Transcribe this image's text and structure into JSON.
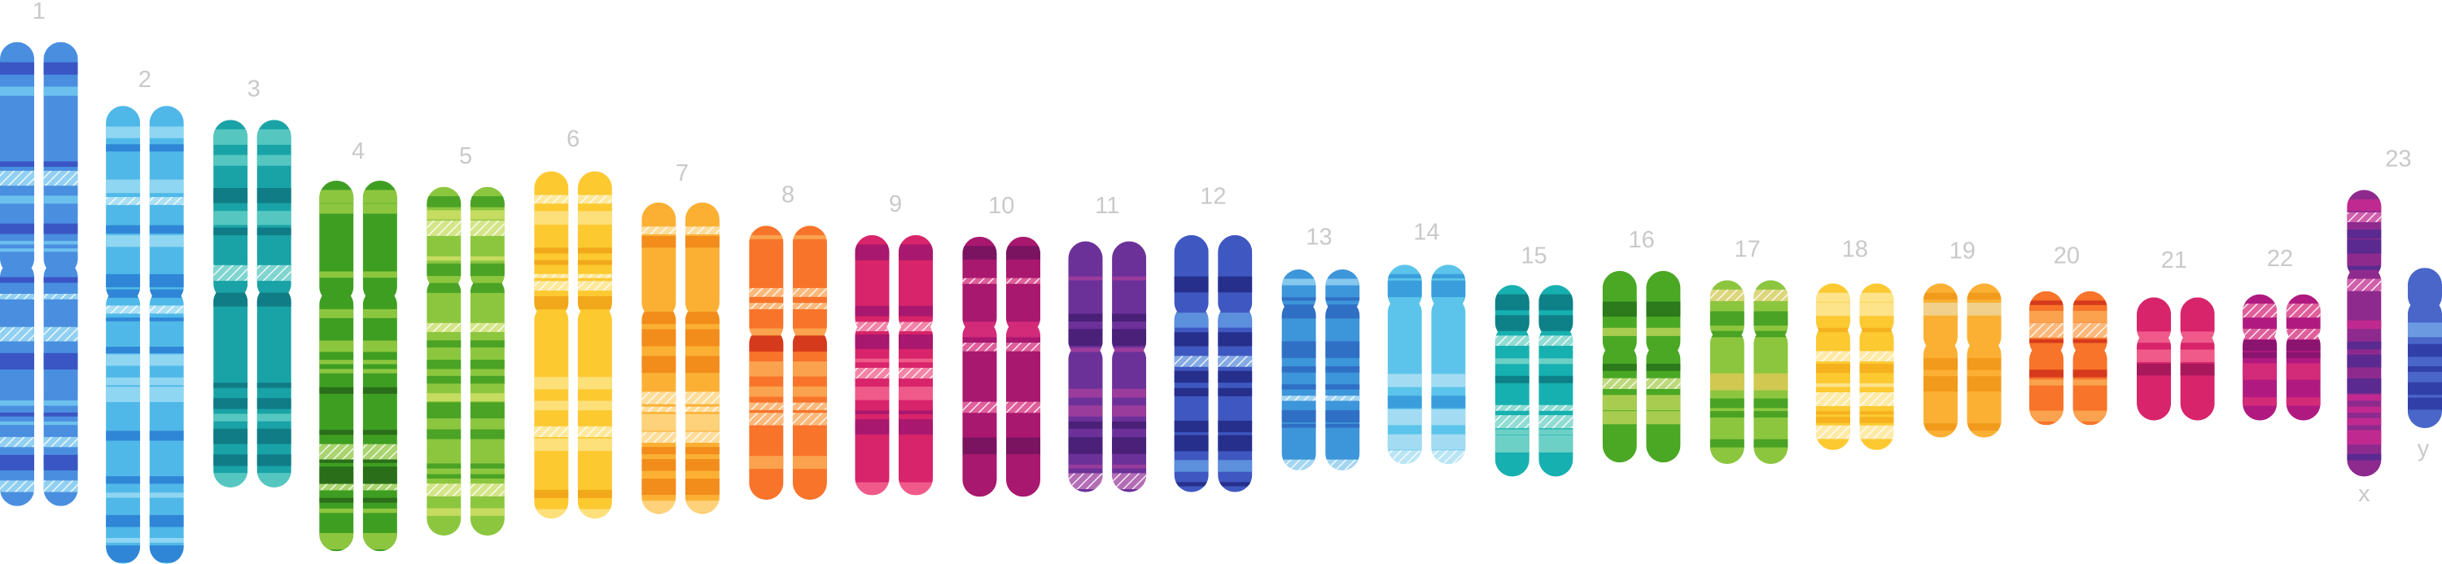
{
  "labels": [
    "1",
    "2",
    "3",
    "4",
    "5",
    "6",
    "7",
    "8",
    "9",
    "10",
    "11",
    "12",
    "13",
    "14",
    "15",
    "16",
    "17",
    "18",
    "19",
    "20",
    "21",
    "22",
    "23"
  ],
  "sex_labels": [
    "x",
    "y"
  ]
}
